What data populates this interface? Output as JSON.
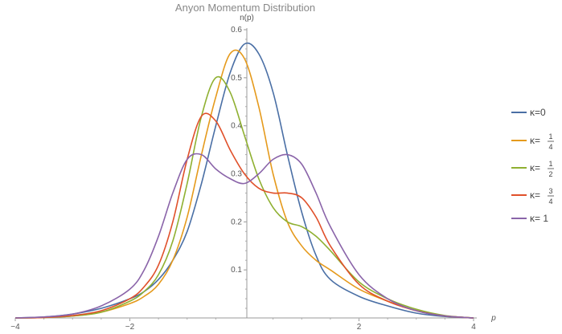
{
  "chart_data": {
    "type": "line",
    "title": "Anyon Momentum Distribution",
    "xlabel": "p",
    "ylabel": "n(p)",
    "xlim": [
      -4,
      4
    ],
    "ylim": [
      0,
      0.6
    ],
    "xticks": [
      -4,
      -2,
      2,
      4
    ],
    "yticks": [
      0.1,
      0.2,
      0.3,
      0.4,
      0.5,
      0.6
    ],
    "grid": false,
    "legend_position": "right",
    "series": [
      {
        "name": "κ=0",
        "legend": {
          "lhs": "κ",
          "eq": "=",
          "value": "0"
        },
        "color": "#4a6fa5",
        "x": [
          -4,
          -3.5,
          -3,
          -2.5,
          -2,
          -1.75,
          -1.5,
          -1.25,
          -1,
          -0.75,
          -0.5,
          -0.25,
          0,
          0.25,
          0.5,
          0.75,
          1,
          1.25,
          1.5,
          2,
          2.5,
          3,
          3.5,
          4
        ],
        "y": [
          0,
          0.002,
          0.008,
          0.02,
          0.04,
          0.055,
          0.08,
          0.12,
          0.18,
          0.28,
          0.4,
          0.51,
          0.57,
          0.55,
          0.47,
          0.34,
          0.22,
          0.13,
          0.08,
          0.045,
          0.025,
          0.01,
          0.003,
          0
        ]
      },
      {
        "name": "κ=1/4",
        "legend": {
          "lhs": "κ",
          "eq": "=",
          "num": "1",
          "den": "4"
        },
        "color": "#e59a1c",
        "x": [
          -4,
          -3.5,
          -3,
          -2.5,
          -2,
          -1.75,
          -1.5,
          -1.25,
          -1,
          -0.75,
          -0.5,
          -0.25,
          0,
          0.25,
          0.5,
          0.75,
          1,
          1.25,
          1.5,
          2,
          2.5,
          3,
          3.5,
          4
        ],
        "y": [
          0,
          0.001,
          0.004,
          0.012,
          0.03,
          0.045,
          0.07,
          0.12,
          0.21,
          0.34,
          0.46,
          0.55,
          0.54,
          0.44,
          0.3,
          0.2,
          0.15,
          0.12,
          0.1,
          0.06,
          0.035,
          0.015,
          0.004,
          0
        ]
      },
      {
        "name": "κ=1/2",
        "legend": {
          "lhs": "κ",
          "eq": "=",
          "num": "1",
          "den": "2"
        },
        "color": "#8fb031",
        "x": [
          -4,
          -3.5,
          -3,
          -2.5,
          -2,
          -1.75,
          -1.5,
          -1.25,
          -1,
          -0.75,
          -0.5,
          -0.25,
          0,
          0.25,
          0.5,
          0.75,
          1,
          1.25,
          1.5,
          2,
          2.5,
          3,
          3.5,
          4
        ],
        "y": [
          0,
          0.001,
          0.004,
          0.012,
          0.035,
          0.055,
          0.09,
          0.16,
          0.28,
          0.42,
          0.5,
          0.47,
          0.38,
          0.29,
          0.23,
          0.2,
          0.19,
          0.17,
          0.14,
          0.075,
          0.04,
          0.018,
          0.005,
          0
        ]
      },
      {
        "name": "κ=3/4",
        "legend": {
          "lhs": "κ",
          "eq": "=",
          "num": "3",
          "den": "4"
        },
        "color": "#e0502a",
        "x": [
          -4,
          -3.5,
          -3,
          -2.5,
          -2,
          -1.75,
          -1.5,
          -1.25,
          -1,
          -0.75,
          -0.5,
          -0.25,
          0,
          0.25,
          0.5,
          0.75,
          1,
          1.25,
          1.5,
          2,
          2.5,
          3,
          3.5,
          4
        ],
        "y": [
          0,
          0.001,
          0.005,
          0.015,
          0.04,
          0.065,
          0.11,
          0.2,
          0.33,
          0.42,
          0.41,
          0.35,
          0.3,
          0.27,
          0.26,
          0.26,
          0.25,
          0.21,
          0.15,
          0.07,
          0.035,
          0.015,
          0.004,
          0
        ]
      },
      {
        "name": "κ= 1",
        "legend": {
          "lhs": "κ",
          "eq": "=",
          "value": " 1"
        },
        "color": "#8a64a9",
        "x": [
          -4,
          -3.5,
          -3,
          -2.5,
          -2,
          -1.75,
          -1.5,
          -1.25,
          -1,
          -0.75,
          -0.5,
          -0.25,
          0,
          0.25,
          0.5,
          0.75,
          1,
          1.25,
          1.5,
          2,
          2.5,
          3,
          3.5,
          4
        ],
        "y": [
          0,
          0.002,
          0.008,
          0.025,
          0.06,
          0.1,
          0.17,
          0.26,
          0.33,
          0.34,
          0.31,
          0.29,
          0.28,
          0.3,
          0.33,
          0.34,
          0.32,
          0.26,
          0.19,
          0.09,
          0.04,
          0.015,
          0.004,
          0
        ]
      }
    ]
  }
}
